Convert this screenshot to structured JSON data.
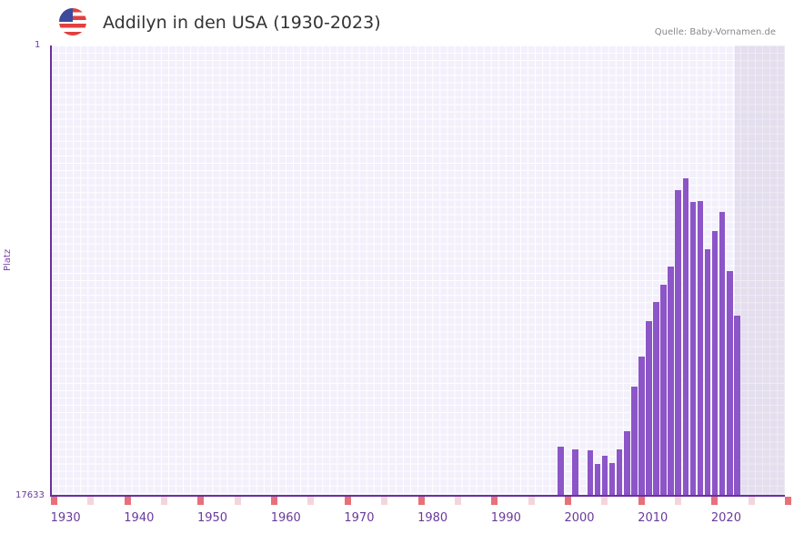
{
  "header": {
    "title": "Addilyn in den USA (1930-2023)",
    "source": "Quelle: Baby-Vornamen.de",
    "flag": "us-flag-icon"
  },
  "colors": {
    "bar": "#8c55c8",
    "axis": "#6a2fa0",
    "marker_major": "#e87078",
    "marker_minor": "#f5d5dc",
    "plot_bg": "#f3f0fc"
  },
  "chart_data": {
    "type": "bar",
    "title": "Addilyn in den USA (1930-2023)",
    "xlabel": "",
    "ylabel": "Platz",
    "ylim": [
      17633,
      1
    ],
    "y_inverted": true,
    "x_tick_labels": [
      "1930",
      "1940",
      "1950",
      "1960",
      "1970",
      "1980",
      "1990",
      "2000",
      "2010",
      "2020"
    ],
    "y_tick_labels": [
      "1",
      "17633"
    ],
    "categories": [
      1997,
      1999,
      2001,
      2002,
      2003,
      2004,
      2005,
      2006,
      2007,
      2008,
      2009,
      2010,
      2011,
      2012,
      2013,
      2014,
      2015,
      2016,
      2017,
      2018,
      2019,
      2020,
      2021
    ],
    "values": [
      15712,
      15819,
      15855,
      16390,
      16069,
      16355,
      15819,
      15106,
      13361,
      12185,
      10795,
      10047,
      9370,
      8657,
      5665,
      5202,
      6128,
      6093,
      7982,
      7269,
      6520,
      8835,
      10582
    ],
    "grid": true,
    "legend": null
  },
  "yaxis": {
    "top": "1",
    "bottom": "17633",
    "label": "Platz"
  }
}
